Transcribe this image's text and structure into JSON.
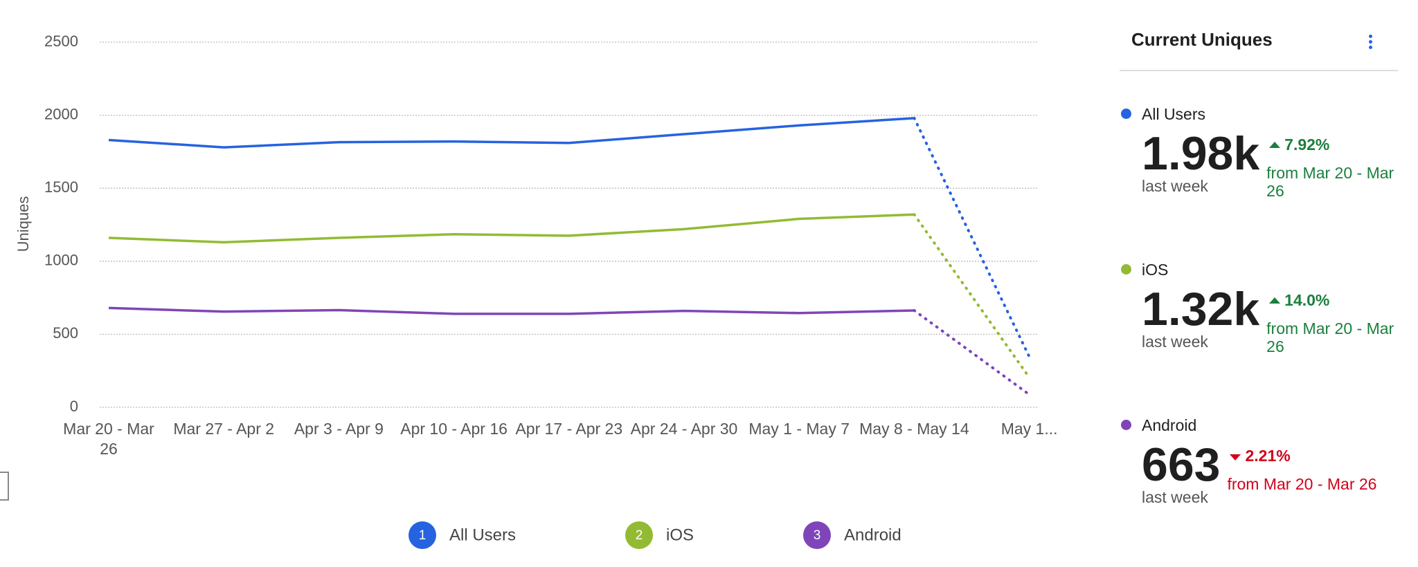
{
  "chart_data": {
    "type": "line",
    "categories": [
      "Mar 20 - Mar 26",
      "Mar 27 - Apr 2",
      "Apr 3 - Apr 9",
      "Apr 10 - Apr 16",
      "Apr 17 - Apr 23",
      "Apr 24 - Apr 30",
      "May 1 - May 7",
      "May 8 - May 14",
      "May 1..."
    ],
    "series": [
      {
        "name": "All Users",
        "badge": "1",
        "color": "#2563e0",
        "values": [
          1830,
          1780,
          1815,
          1820,
          1810,
          1870,
          1930,
          1980,
          346
        ]
      },
      {
        "name": "iOS",
        "badge": "2",
        "color": "#92bb33",
        "values": [
          1160,
          1130,
          1160,
          1185,
          1175,
          1220,
          1290,
          1320,
          204
        ]
      },
      {
        "name": "Android",
        "badge": "3",
        "color": "#7f45b8",
        "values": [
          680,
          655,
          665,
          640,
          640,
          660,
          645,
          663,
          87
        ]
      }
    ],
    "y_label": "Uniques",
    "ylim": [
      0,
      2500
    ],
    "yticks": [
      0,
      500,
      1000,
      1500,
      2000,
      2500
    ],
    "grid": true,
    "dotted_last_segment": true,
    "legend": "bottom"
  },
  "panel": {
    "title": "Current Uniques",
    "items": [
      {
        "name": "All Users",
        "color": "#2563e0",
        "value": "1.98k",
        "period": "last week",
        "change": "7.92%",
        "direction": "up",
        "from": "from Mar 20 - Mar 26"
      },
      {
        "name": "iOS",
        "color": "#92bb33",
        "value": "1.32k",
        "period": "last week",
        "change": "14.0%",
        "direction": "up",
        "from": "from Mar 20 - Mar 26"
      },
      {
        "name": "Android",
        "color": "#7f45b8",
        "value": "663",
        "period": "last week",
        "change": "2.21%",
        "direction": "down",
        "from": "from Mar 20 - Mar 26"
      }
    ]
  }
}
